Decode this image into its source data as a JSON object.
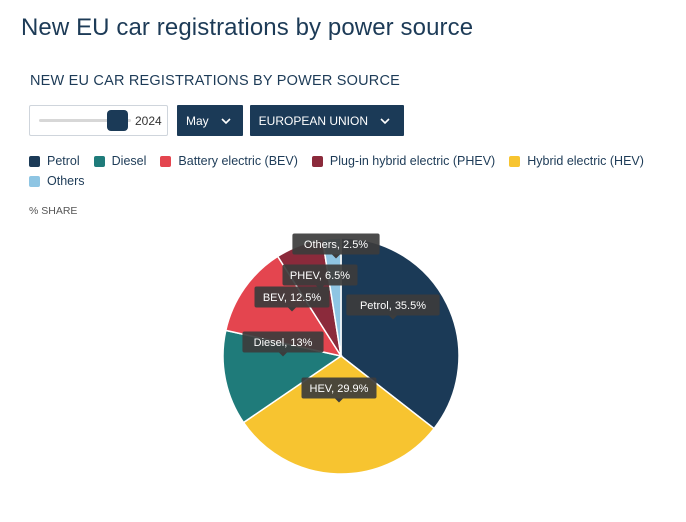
{
  "page": {
    "title": "New EU car registrations by power source"
  },
  "chart_header": {
    "title": "NEW EU CAR REGISTRATIONS BY POWER SOURCE"
  },
  "controls": {
    "year": "2024",
    "month": "May",
    "region": "EUROPEAN UNION"
  },
  "unit_label": "% SHARE",
  "colors": {
    "petrol": "#1b3a57",
    "diesel": "#1f7b7a",
    "bev": "#e4454f",
    "phev": "#8b2a3b",
    "hev": "#f7c430",
    "others": "#8ec5e3"
  },
  "chart_data": {
    "type": "pie",
    "title": "NEW EU CAR REGISTRATIONS BY POWER SOURCE",
    "unit": "% SHARE",
    "legend": [
      "Petrol",
      "Diesel",
      "Battery electric (BEV)",
      "Plug-in hybrid electric (PHEV)",
      "Hybrid electric (HEV)",
      "Others"
    ],
    "slices": [
      {
        "label": "Petrol",
        "short": "Petrol",
        "value": 35.5,
        "color": "#1b3a57"
      },
      {
        "label": "Hybrid electric (HEV)",
        "short": "HEV",
        "value": 29.9,
        "color": "#f7c430"
      },
      {
        "label": "Diesel",
        "short": "Diesel",
        "value": 13,
        "color": "#1f7b7a"
      },
      {
        "label": "Battery electric (BEV)",
        "short": "BEV",
        "value": 12.5,
        "color": "#e4454f"
      },
      {
        "label": "Plug-in hybrid electric (PHEV)",
        "short": "PHEV",
        "value": 6.5,
        "color": "#8b2a3b"
      },
      {
        "label": "Others",
        "short": "Others",
        "value": 2.5,
        "color": "#8ec5e3"
      }
    ],
    "data_labels": [
      "Petrol, 35.5%",
      "HEV, 29.9%",
      "Diesel, 13%",
      "BEV, 12.5%",
      "PHEV, 6.5%",
      "Others, 2.5%"
    ]
  }
}
